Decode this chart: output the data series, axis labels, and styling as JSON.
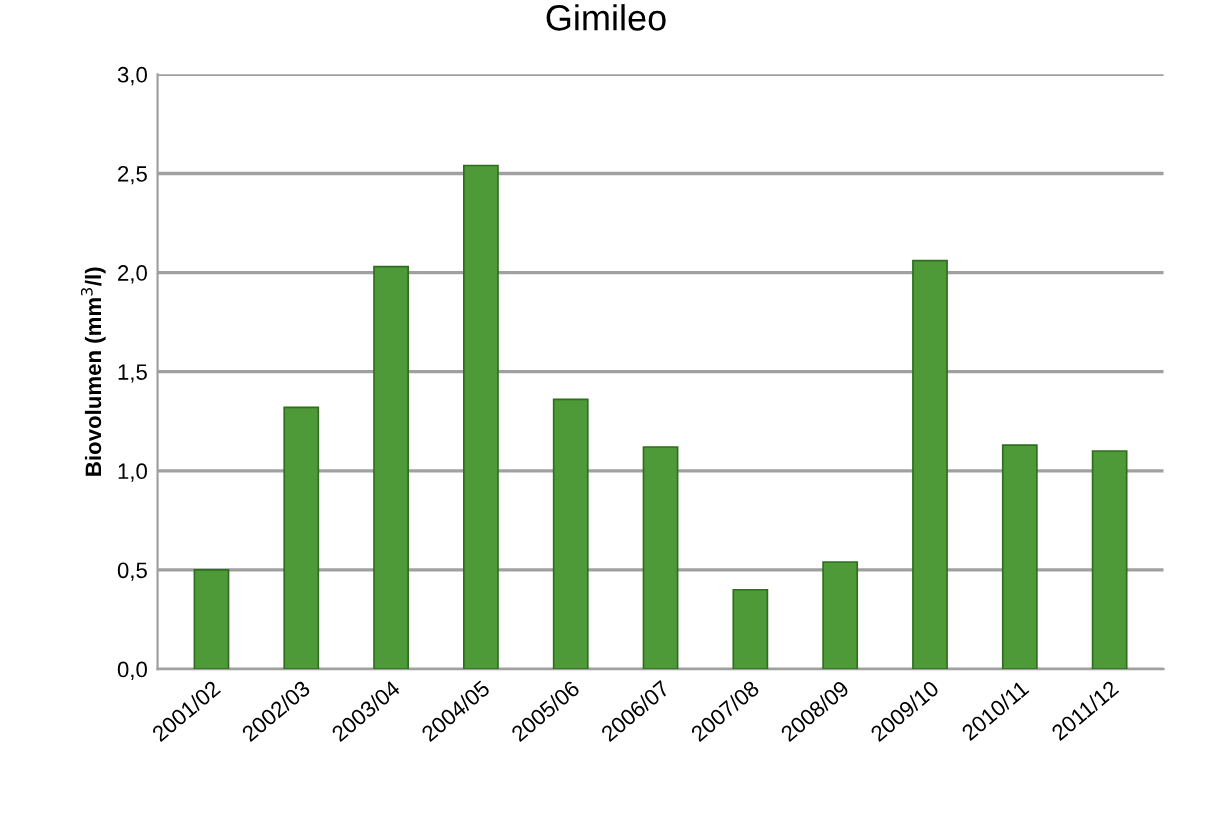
{
  "chart_data": {
    "type": "bar",
    "title": "Gimileo",
    "ylabel": "Biovolumen (mm$^{3}$/l)",
    "categories": [
      "2001/02",
      "2002/03",
      "2003/04",
      "2004/05",
      "2005/06",
      "2006/07",
      "2007/08",
      "2008/09",
      "2009/10",
      "2010/11",
      "2011/12"
    ],
    "values": [
      0.5,
      1.32,
      2.03,
      2.54,
      1.36,
      1.12,
      0.4,
      0.54,
      2.06,
      1.13,
      1.1
    ],
    "color": "#4e9a38",
    "ylim": [
      0,
      3
    ],
    "yticks": [
      {
        "value": 0,
        "label": "0,0"
      },
      {
        "value": 0.5,
        "label": "0,5"
      },
      {
        "value": 1,
        "label": "1,0"
      },
      {
        "value": 1.5,
        "label": "1,5"
      },
      {
        "value": 2,
        "label": "2,0"
      },
      {
        "value": 2.5,
        "label": "2,5"
      },
      {
        "value": 3,
        "label": "3,0"
      }
    ],
    "grid": "y"
  }
}
